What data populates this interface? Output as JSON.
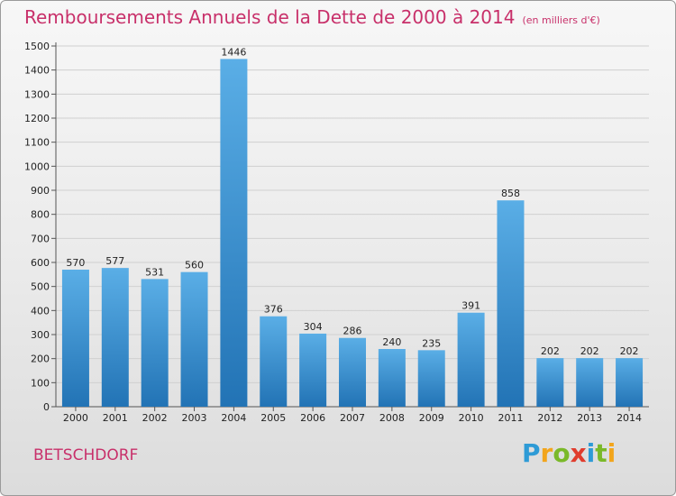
{
  "title": "Remboursements Annuels de la Dette de 2000 à 2014",
  "subtitle": "(en milliers d'€)",
  "commune": "BETSCHDORF",
  "logo": {
    "letters": [
      "P",
      "r",
      "o",
      "x",
      "i",
      "t",
      "i"
    ],
    "colors": [
      "#2e9bd6",
      "#f2a51c",
      "#7ab929",
      "#e03c2d",
      "#2e9bd6",
      "#7ab929",
      "#f2a51c"
    ]
  },
  "colors": {
    "bar_top": "#5aaee6",
    "bar_bottom": "#2273b5",
    "title": "#c8306a"
  },
  "chart_data": {
    "type": "bar",
    "categories": [
      "2000",
      "2001",
      "2002",
      "2003",
      "2004",
      "2005",
      "2006",
      "2007",
      "2008",
      "2009",
      "2010",
      "2011",
      "2012",
      "2013",
      "2014"
    ],
    "values": [
      570,
      577,
      531,
      560,
      1446,
      376,
      304,
      286,
      240,
      235,
      391,
      858,
      202,
      202,
      202
    ],
    "data_labels": [
      "570",
      "577",
      "531",
      "560",
      "1446",
      "376",
      "304",
      "286",
      "240",
      "235",
      "391",
      "858",
      "202",
      "202",
      "202"
    ],
    "yticks": [
      0,
      100,
      200,
      300,
      400,
      500,
      600,
      700,
      800,
      900,
      1000,
      1100,
      1200,
      1300,
      1400,
      1500
    ],
    "ylim": [
      0,
      1500
    ],
    "grid": true
  }
}
